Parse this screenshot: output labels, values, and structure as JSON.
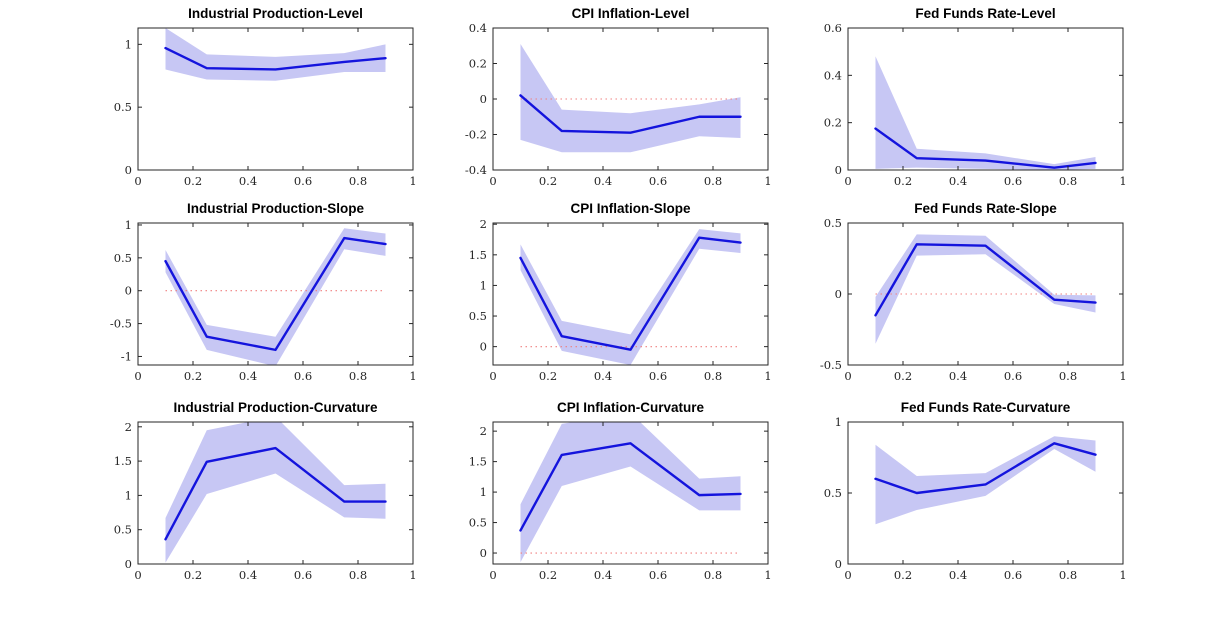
{
  "figure": {
    "background": "#ffffff",
    "style": {
      "line_color": "#1414dd",
      "band_color": "#c7c7f4",
      "zero_line_color": "#f08080",
      "axis_color": "#262626",
      "tick_label_color": "#262626",
      "title_color": "#000000"
    }
  },
  "chart_data": [
    {
      "type": "line",
      "title": "Industrial Production-Level",
      "x": [
        0.1,
        0.25,
        0.5,
        0.75,
        0.9
      ],
      "mean": [
        0.97,
        0.81,
        0.8,
        0.86,
        0.89
      ],
      "upper": [
        1.13,
        0.92,
        0.9,
        0.93,
        1.0
      ],
      "lower": [
        0.8,
        0.72,
        0.71,
        0.78,
        0.78
      ],
      "xlim": [
        0,
        1
      ],
      "ylim": [
        0,
        1.13
      ],
      "xticks": [
        0,
        0.2,
        0.4,
        0.6,
        0.8,
        1
      ],
      "yticks": [
        0,
        0.5,
        1
      ],
      "zero_line": false,
      "legend": "none",
      "grid": false
    },
    {
      "type": "line",
      "title": "CPI Inflation-Level",
      "x": [
        0.1,
        0.25,
        0.5,
        0.75,
        0.9
      ],
      "mean": [
        0.02,
        -0.18,
        -0.19,
        -0.1,
        -0.1
      ],
      "upper": [
        0.31,
        -0.06,
        -0.08,
        -0.03,
        0.01
      ],
      "lower": [
        -0.23,
        -0.3,
        -0.3,
        -0.21,
        -0.22
      ],
      "xlim": [
        0,
        1
      ],
      "ylim": [
        -0.4,
        0.4
      ],
      "xticks": [
        0,
        0.2,
        0.4,
        0.6,
        0.8,
        1
      ],
      "yticks": [
        -0.4,
        -0.2,
        0,
        0.2,
        0.4
      ],
      "zero_line": true,
      "legend": "none",
      "grid": false
    },
    {
      "type": "line",
      "title": "Fed Funds Rate-Level",
      "x": [
        0.1,
        0.25,
        0.5,
        0.75,
        0.9
      ],
      "mean": [
        0.175,
        0.05,
        0.04,
        0.01,
        0.03
      ],
      "upper": [
        0.48,
        0.09,
        0.07,
        0.025,
        0.055
      ],
      "lower": [
        0.005,
        0.01,
        0.005,
        0.0,
        0.005
      ],
      "xlim": [
        0,
        1
      ],
      "ylim": [
        0,
        0.6
      ],
      "xticks": [
        0,
        0.2,
        0.4,
        0.6,
        0.8,
        1
      ],
      "yticks": [
        0,
        0.2,
        0.4,
        0.6
      ],
      "zero_line": true,
      "legend": "none",
      "grid": false
    },
    {
      "type": "line",
      "title": "Industrial Production-Slope",
      "x": [
        0.1,
        0.25,
        0.5,
        0.75,
        0.9
      ],
      "mean": [
        0.45,
        -0.7,
        -0.9,
        0.8,
        0.71
      ],
      "upper": [
        0.62,
        -0.52,
        -0.7,
        0.95,
        0.87
      ],
      "lower": [
        0.28,
        -0.9,
        -1.15,
        0.63,
        0.53
      ],
      "xlim": [
        0,
        1
      ],
      "ylim": [
        -1.13,
        1.03
      ],
      "xticks": [
        0,
        0.2,
        0.4,
        0.6,
        0.8,
        1
      ],
      "yticks": [
        -1,
        -0.5,
        0,
        0.5,
        1
      ],
      "zero_line": true,
      "legend": "none",
      "grid": false
    },
    {
      "type": "line",
      "title": "CPI Inflation-Slope",
      "x": [
        0.1,
        0.25,
        0.5,
        0.75,
        0.9
      ],
      "mean": [
        1.45,
        0.17,
        -0.05,
        1.78,
        1.7
      ],
      "upper": [
        1.67,
        0.42,
        0.2,
        1.92,
        1.85
      ],
      "lower": [
        1.25,
        -0.07,
        -0.3,
        1.6,
        1.53
      ],
      "xlim": [
        0,
        1
      ],
      "ylim": [
        -0.3,
        2.02
      ],
      "xticks": [
        0,
        0.2,
        0.4,
        0.6,
        0.8,
        1
      ],
      "yticks": [
        0,
        0.5,
        1,
        1.5,
        2
      ],
      "zero_line": true,
      "legend": "none",
      "grid": false
    },
    {
      "type": "line",
      "title": "Fed Funds Rate-Slope",
      "x": [
        0.1,
        0.25,
        0.5,
        0.75,
        0.9
      ],
      "mean": [
        -0.15,
        0.35,
        0.34,
        -0.04,
        -0.06
      ],
      "upper": [
        -0.02,
        0.42,
        0.41,
        -0.005,
        -0.01
      ],
      "lower": [
        -0.35,
        0.27,
        0.28,
        -0.07,
        -0.13
      ],
      "xlim": [
        0,
        1
      ],
      "ylim": [
        -0.5,
        0.5
      ],
      "xticks": [
        0,
        0.2,
        0.4,
        0.6,
        0.8,
        1
      ],
      "yticks": [
        -0.5,
        0,
        0.5
      ],
      "zero_line": true,
      "legend": "none",
      "grid": false
    },
    {
      "type": "line",
      "title": "Industrial Production-Curvature",
      "x": [
        0.1,
        0.25,
        0.5,
        0.75,
        0.9
      ],
      "mean": [
        0.36,
        1.49,
        1.69,
        0.91,
        0.91
      ],
      "upper": [
        0.67,
        1.95,
        2.15,
        1.15,
        1.17
      ],
      "lower": [
        0.02,
        1.02,
        1.32,
        0.68,
        0.66
      ],
      "xlim": [
        0,
        1
      ],
      "ylim": [
        0,
        2.07
      ],
      "xticks": [
        0,
        0.2,
        0.4,
        0.6,
        0.8,
        1
      ],
      "yticks": [
        0,
        0.5,
        1,
        1.5,
        2
      ],
      "zero_line": true,
      "legend": "none",
      "grid": false
    },
    {
      "type": "line",
      "title": "CPI Inflation-Curvature",
      "x": [
        0.1,
        0.25,
        0.5,
        0.75,
        0.9
      ],
      "mean": [
        0.37,
        1.61,
        1.8,
        0.95,
        0.97
      ],
      "upper": [
        0.8,
        2.12,
        2.3,
        1.22,
        1.26
      ],
      "lower": [
        -0.15,
        1.1,
        1.42,
        0.7,
        0.7
      ],
      "xlim": [
        0,
        1
      ],
      "ylim": [
        -0.18,
        2.15
      ],
      "xticks": [
        0,
        0.2,
        0.4,
        0.6,
        0.8,
        1
      ],
      "yticks": [
        0,
        0.5,
        1,
        1.5,
        2
      ],
      "zero_line": true,
      "legend": "none",
      "grid": false
    },
    {
      "type": "line",
      "title": "Fed Funds Rate-Curvature",
      "x": [
        0.1,
        0.25,
        0.5,
        0.75,
        0.9
      ],
      "mean": [
        0.6,
        0.5,
        0.56,
        0.85,
        0.77
      ],
      "upper": [
        0.84,
        0.62,
        0.64,
        0.9,
        0.87
      ],
      "lower": [
        0.28,
        0.38,
        0.48,
        0.81,
        0.65
      ],
      "xlim": [
        0,
        1
      ],
      "ylim": [
        0,
        1
      ],
      "xticks": [
        0,
        0.2,
        0.4,
        0.6,
        0.8,
        1
      ],
      "yticks": [
        0,
        0.5,
        1
      ],
      "zero_line": false,
      "legend": "none",
      "grid": false
    }
  ]
}
